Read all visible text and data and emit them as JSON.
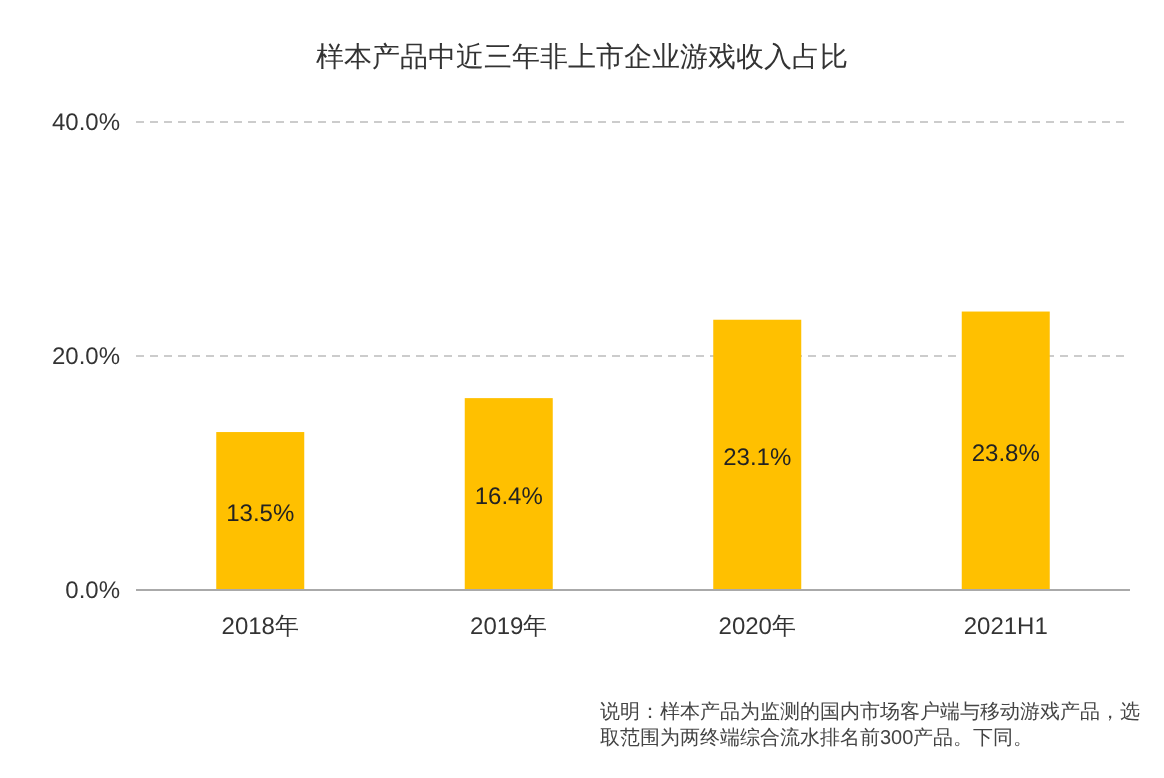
{
  "chart_data": {
    "type": "bar",
    "title": "样本产品中近三年非上市企业游戏收入占比",
    "categories": [
      "2018年",
      "2019年",
      "2020年",
      "2021H1"
    ],
    "values": [
      13.5,
      16.4,
      23.1,
      23.8
    ],
    "value_labels": [
      "13.5%",
      "16.4%",
      "23.1%",
      "23.8%"
    ],
    "color": "#ffc000",
    "ylim": [
      0,
      40
    ],
    "yticks": [
      {
        "value": 0,
        "label": "0.0%"
      },
      {
        "value": 20,
        "label": "20.0%"
      },
      {
        "value": 40,
        "label": "40.0%"
      }
    ],
    "grid": "y",
    "annotations": [
      "说明：样本产品为监测的国内市场客户端与移动游戏产品，选取范围为两终端综合流水排名前300产品。下同。"
    ]
  }
}
